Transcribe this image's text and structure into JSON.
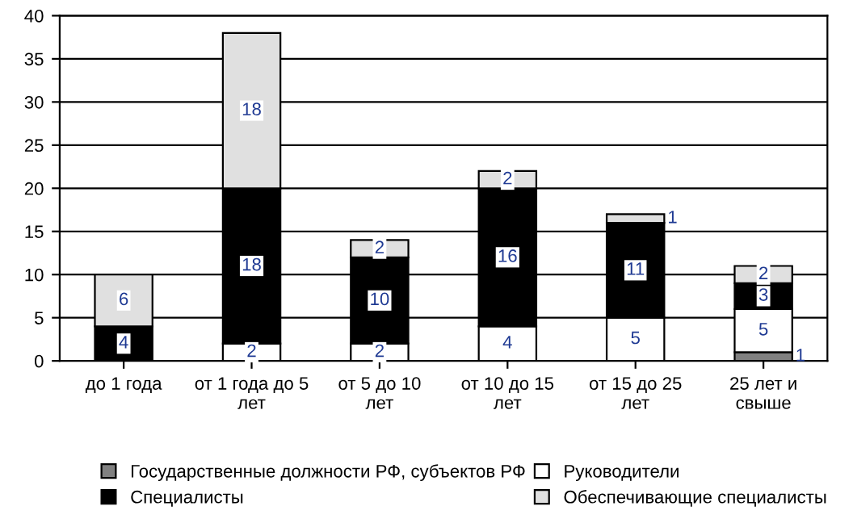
{
  "chart_data": {
    "type": "bar",
    "stacked": true,
    "categories": [
      "до 1 года",
      "от 1 года до 5\nлет",
      "от 5 до 10\nлет",
      "от 10 до 15\nлет",
      "от 15 до 25\nлет",
      "25 лет и\nсвыше"
    ],
    "series": [
      {
        "name": "Государственные должности РФ, субъектов РФ",
        "color": "#808080",
        "values": [
          null,
          null,
          null,
          null,
          null,
          1
        ]
      },
      {
        "name": "Руководители",
        "color": "#ffffff",
        "values": [
          null,
          2,
          2,
          4,
          5,
          5
        ]
      },
      {
        "name": "Специалисты",
        "color": "#000000",
        "values": [
          4,
          18,
          10,
          16,
          11,
          3
        ]
      },
      {
        "name": "Обеспечивающие специалисты",
        "color": "#e0e0e0",
        "values": [
          6,
          18,
          2,
          2,
          1,
          2
        ]
      }
    ],
    "ylim": [
      0,
      40
    ],
    "yticks": [
      0,
      5,
      10,
      15,
      20,
      25,
      30,
      35,
      40
    ],
    "grid": "y",
    "legend": "bottom",
    "data_labels": true
  }
}
